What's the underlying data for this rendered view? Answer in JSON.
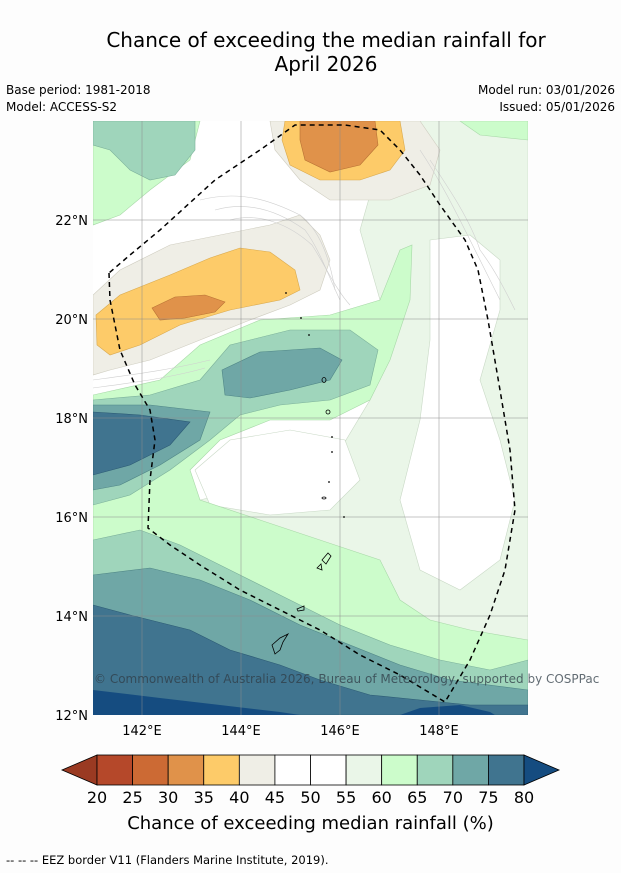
{
  "header": {
    "title_line1": "Chance of exceeding the median rainfall for",
    "title_line2": "April 2026",
    "base_period": "Base period: 1981-2018",
    "model": "Model: ACCESS-S2",
    "model_run": "Model run: 03/01/2026",
    "issued": "Issued: 05/01/2026"
  },
  "map": {
    "lat_labels": [
      "22°N",
      "20°N",
      "18°N",
      "16°N",
      "14°N",
      "12°N"
    ],
    "lon_labels": [
      "142°E",
      "144°E",
      "146°E",
      "148°E"
    ],
    "copyright": "© Commonwealth of Australia 2026, Bureau of Meteorology, supported by COSPPac"
  },
  "colorbar": {
    "ticks": [
      "20",
      "25",
      "30",
      "35",
      "40",
      "45",
      "50",
      "55",
      "60",
      "65",
      "70",
      "75",
      "80"
    ],
    "colors": {
      "below20": "#9a3a22",
      "20-25": "#b5482a",
      "25-30": "#cc6a34",
      "30-35": "#e0924a",
      "35-40": "#fdcb69",
      "40-45": "#efeee6",
      "45-50": "#ffffff",
      "50-55": "#ffffff",
      "55-60": "#eaf6e8",
      "60-65": "#ccfccb",
      "65-70": "#9fd5bb",
      "70-75": "#6fa7a6",
      "75-80": "#40748f",
      "above80": "#154c80"
    },
    "label": "Chance of exceeding median rainfall (%)"
  },
  "footer": {
    "legend_note": "--  --  -- EEZ border V11 (Flanders Marine Institute, 2019)."
  }
}
